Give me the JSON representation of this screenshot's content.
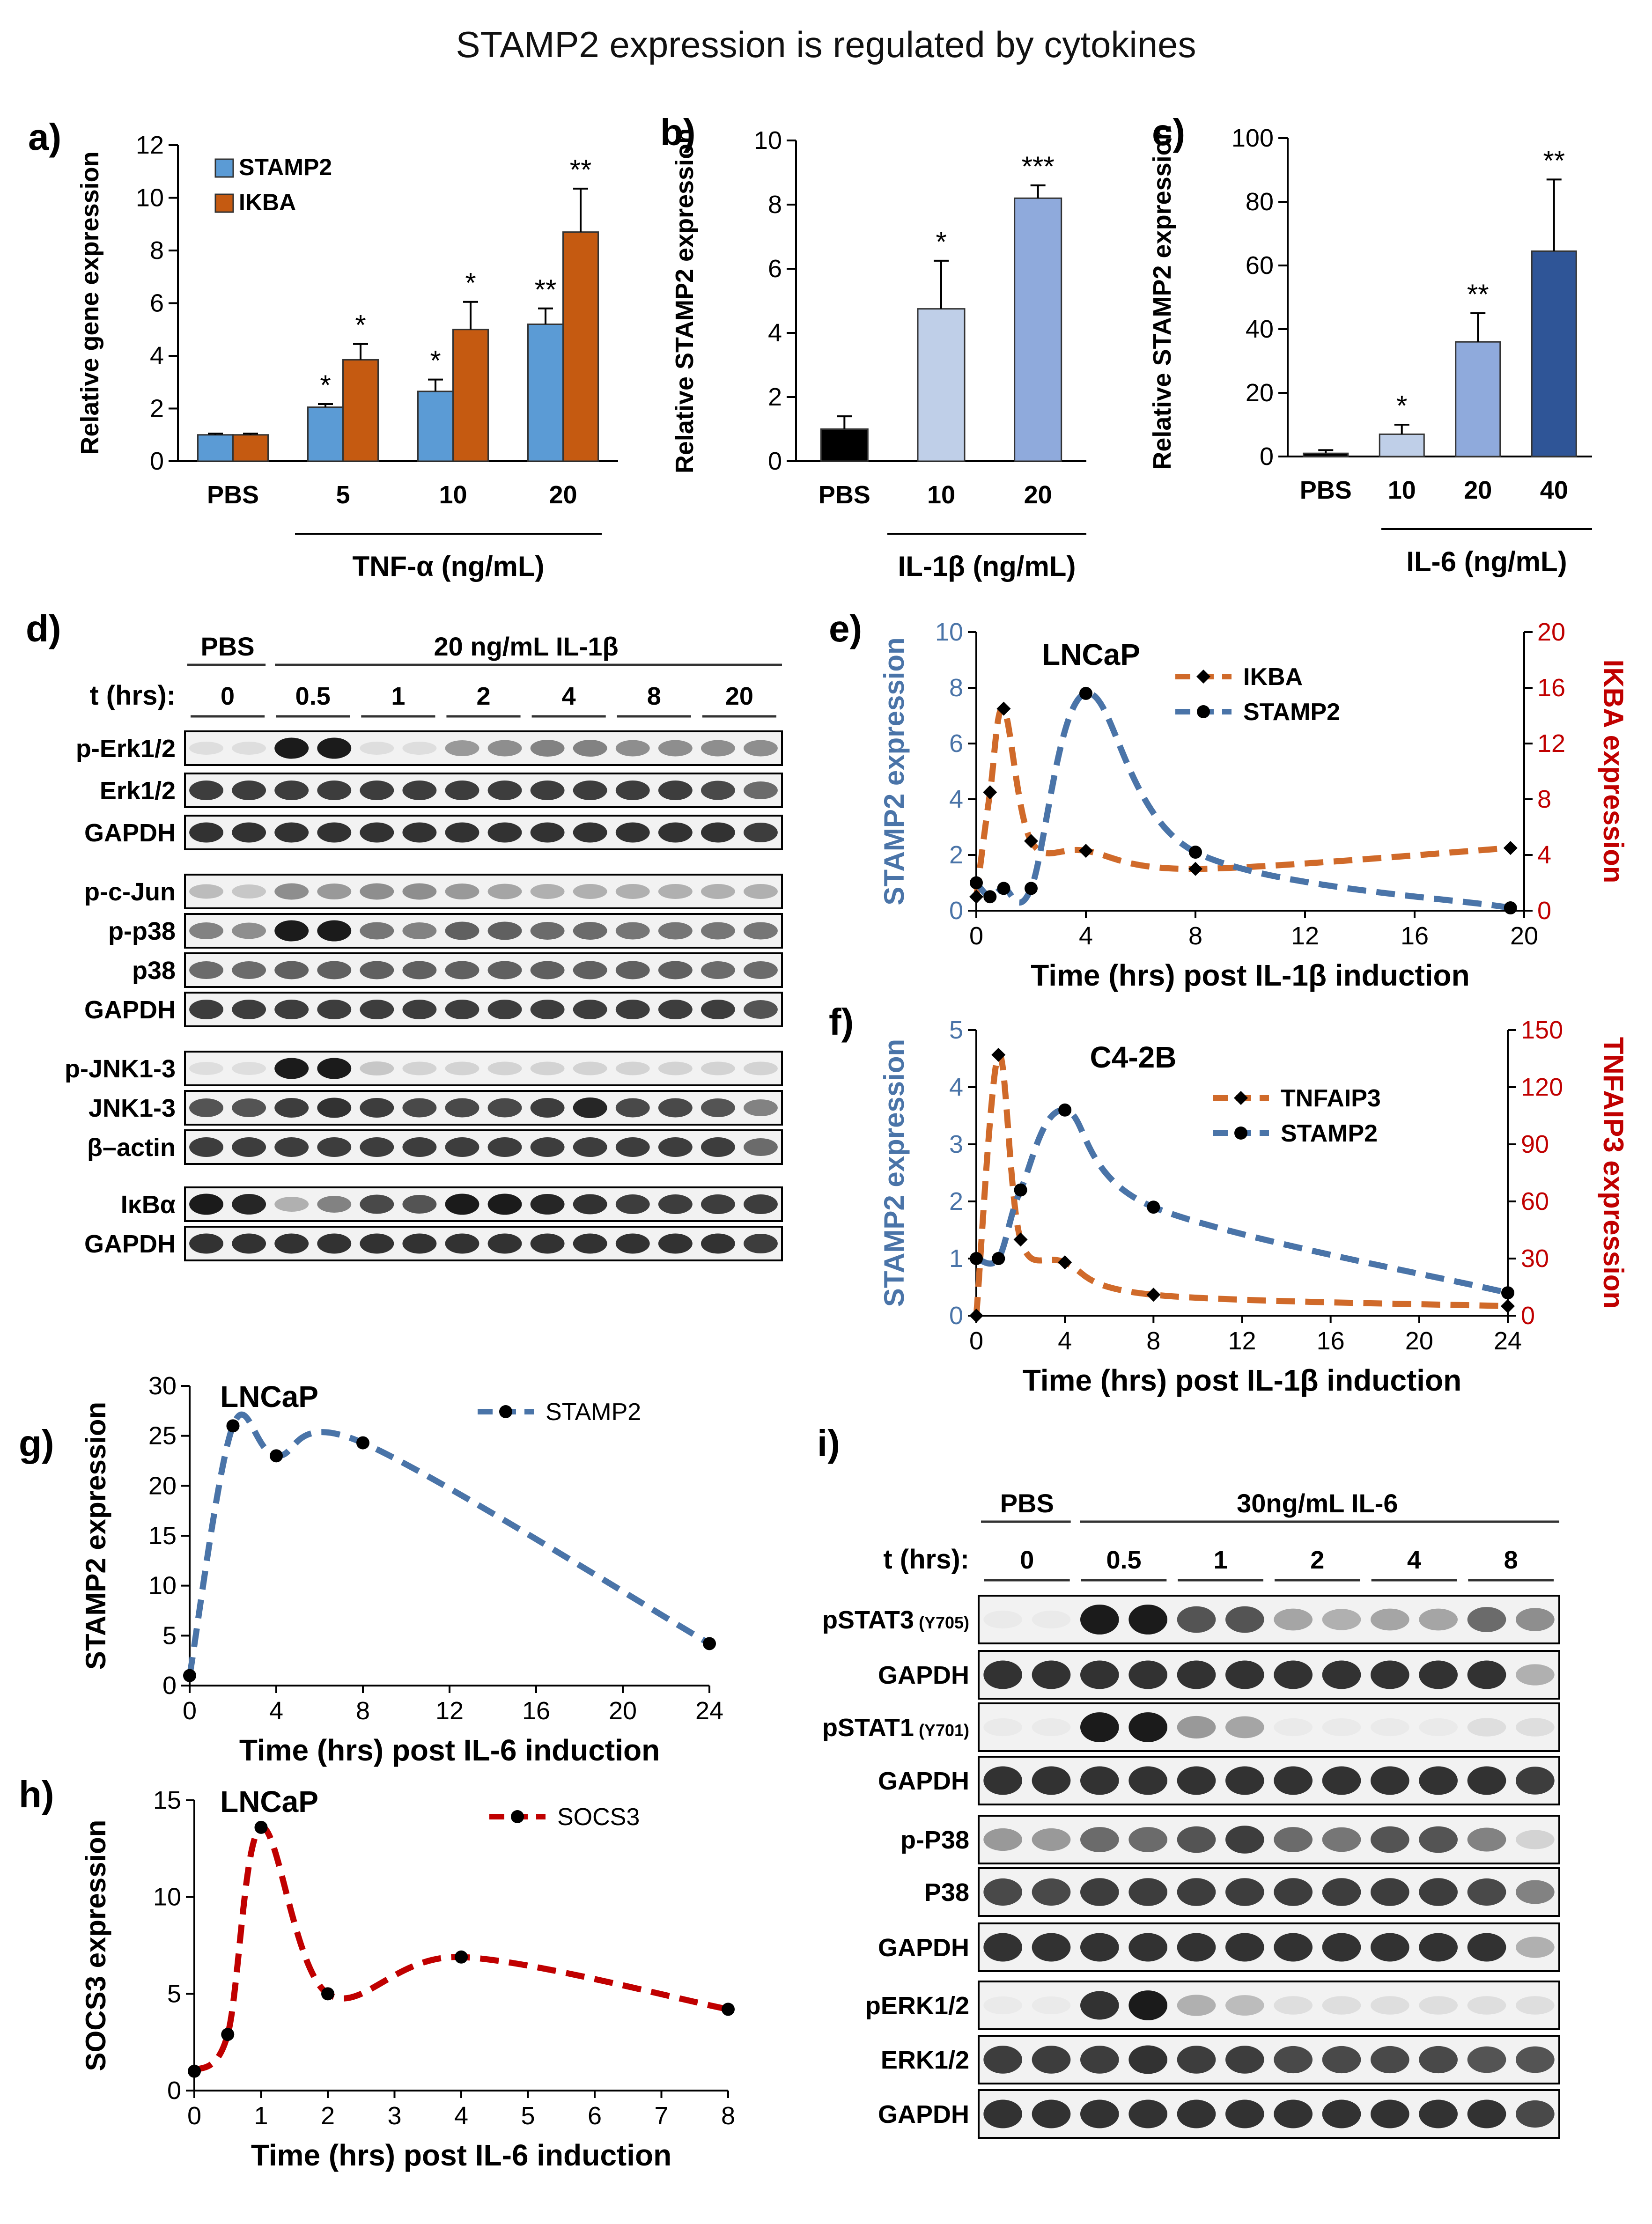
{
  "figure": {
    "title": "STAMP2 expression is regulated by cytokines"
  },
  "colors": {
    "stamp2_blue": "#5b9bd5",
    "ikba_orange": "#c55a11",
    "black": "#000000",
    "light_blue": "#bfcfe8",
    "mid_blue": "#8faadc",
    "dark_blue": "#2f5597",
    "line_blue": "#4a74a8",
    "line_orange": "#d06a2a",
    "line_red": "#c00000",
    "axis_blue": "#4a74a8",
    "axis_red": "#c00000"
  },
  "panels": {
    "a": "a)",
    "b": "b)",
    "c": "c)",
    "d": "d)",
    "e": "e)",
    "f": "f)",
    "g": "g)",
    "h": "h)",
    "i": "i)"
  },
  "chart_data": [
    {
      "id": "a",
      "type": "bar",
      "categories": [
        "PBS",
        "5",
        "10",
        "20"
      ],
      "series": [
        {
          "name": "STAMP2",
          "values": [
            1.0,
            2.05,
            2.65,
            5.2
          ],
          "errors": [
            0.05,
            0.12,
            0.45,
            0.6
          ],
          "stars": [
            "",
            "*",
            "*",
            "**"
          ]
        },
        {
          "name": "IKBA",
          "values": [
            1.0,
            3.85,
            5.0,
            8.7
          ],
          "errors": [
            0.05,
            0.6,
            1.05,
            1.65
          ],
          "stars": [
            "",
            "*",
            "*",
            "**"
          ]
        }
      ],
      "ylabel": "Relative gene expression",
      "ylim": [
        0,
        12
      ],
      "yticks": [
        "0",
        "2",
        "4",
        "6",
        "8",
        "10",
        "12"
      ],
      "group_label": "TNF-α (ng/mL)"
    },
    {
      "id": "b",
      "type": "bar",
      "categories": [
        "PBS",
        "10",
        "20"
      ],
      "values": [
        1.0,
        4.75,
        8.2
      ],
      "errors": [
        0.4,
        1.5,
        0.4
      ],
      "stars": [
        "",
        "*",
        "***"
      ],
      "ylabel": "Relative STAMP2 expression",
      "ylim": [
        0,
        10
      ],
      "yticks": [
        "0",
        "2",
        "4",
        "6",
        "8",
        "10"
      ],
      "group_label": "IL-1β (ng/mL)"
    },
    {
      "id": "c",
      "type": "bar",
      "categories": [
        "PBS",
        "10",
        "20",
        "40"
      ],
      "values": [
        1.0,
        7.0,
        36.0,
        64.5
      ],
      "errors": [
        1.0,
        3.0,
        9.0,
        22.5
      ],
      "stars": [
        "",
        "*",
        "**",
        "**"
      ],
      "ylabel": "Relative STAMP2 expression",
      "ylim": [
        0,
        100
      ],
      "yticks": [
        "0",
        "20",
        "40",
        "60",
        "80",
        "100"
      ],
      "group_label": "IL-6 (ng/mL)"
    },
    {
      "id": "e",
      "type": "line",
      "annotation": "LNCaP",
      "xlabel": "Time (hrs) post IL-1β induction",
      "xlim": [
        0,
        20
      ],
      "xticks": [
        "0",
        "4",
        "8",
        "12",
        "16",
        "20"
      ],
      "ylabel": "STAMP2 expression",
      "ylim": [
        0,
        10
      ],
      "yticks": [
        "0",
        "2",
        "4",
        "6",
        "8",
        "10"
      ],
      "y2label": "IKBA expression",
      "y2lim": [
        0,
        20
      ],
      "y2ticks": [
        "0",
        "4",
        "8",
        "12",
        "16",
        "20"
      ],
      "series": [
        {
          "name": "IKBA",
          "axis": "right",
          "x": [
            0,
            0.5,
            1,
            2,
            4,
            8,
            19.5
          ],
          "y": [
            1.0,
            8.5,
            14.5,
            5.0,
            4.3,
            3.0,
            4.5
          ]
        },
        {
          "name": "STAMP2",
          "axis": "left",
          "x": [
            0,
            0.5,
            1,
            2,
            4,
            8,
            19.5
          ],
          "y": [
            1.0,
            0.5,
            0.8,
            0.8,
            7.8,
            2.1,
            0.1
          ]
        }
      ]
    },
    {
      "id": "f",
      "type": "line",
      "annotation": "C4-2B",
      "xlabel": "Time (hrs) post IL-1β induction",
      "xlim": [
        0,
        24
      ],
      "xticks": [
        "0",
        "4",
        "8",
        "12",
        "16",
        "20",
        "24"
      ],
      "ylabel": "STAMP2 expression",
      "ylim": [
        0,
        5
      ],
      "yticks": [
        "0",
        "1",
        "2",
        "3",
        "4",
        "5"
      ],
      "y2label": "TNFAIP3 expression",
      "y2lim": [
        0,
        150
      ],
      "y2ticks": [
        "0",
        "30",
        "60",
        "90",
        "120",
        "150"
      ],
      "series": [
        {
          "name": "TNFAIP3",
          "axis": "right",
          "x": [
            0,
            1,
            2,
            4,
            8,
            24
          ],
          "y": [
            0,
            137,
            40,
            28,
            11,
            5
          ]
        },
        {
          "name": "STAMP2",
          "axis": "left",
          "x": [
            0,
            1,
            2,
            4,
            8,
            24
          ],
          "y": [
            1.0,
            1.0,
            2.2,
            3.6,
            1.9,
            0.4
          ]
        }
      ]
    },
    {
      "id": "g",
      "type": "line",
      "annotation": "LNCaP",
      "xlabel": "Time (hrs) post IL-6 induction",
      "xlim": [
        0,
        24
      ],
      "xticks": [
        "0",
        "4",
        "8",
        "12",
        "16",
        "20",
        "24"
      ],
      "ylabel": "STAMP2 expression",
      "ylim": [
        0,
        30
      ],
      "yticks": [
        "0",
        "5",
        "10",
        "15",
        "20",
        "25",
        "30"
      ],
      "series": [
        {
          "name": "STAMP2",
          "x": [
            0,
            2,
            4,
            8,
            24
          ],
          "y": [
            1.0,
            26.0,
            23.0,
            24.3,
            4.2
          ]
        }
      ]
    },
    {
      "id": "h",
      "type": "line",
      "annotation": "LNCaP",
      "xlabel": "Time (hrs) post IL-6 induction",
      "xlim": [
        0,
        8
      ],
      "xticks": [
        "0",
        "1",
        "2",
        "3",
        "4",
        "5",
        "6",
        "7",
        "8"
      ],
      "ylabel": "SOCS3 expression",
      "ylim": [
        0,
        15
      ],
      "yticks": [
        "0",
        "5",
        "10",
        "15"
      ],
      "series": [
        {
          "name": "SOCS3",
          "x": [
            0,
            0.5,
            1,
            2,
            4,
            8
          ],
          "y": [
            1.0,
            2.9,
            13.6,
            5.0,
            6.9,
            4.2
          ]
        }
      ]
    }
  ],
  "blot_d": {
    "pbs_label": "PBS",
    "treat_label": "20 ng/mL IL-1β",
    "t_label": "t (hrs):",
    "times": [
      "0",
      "0.5",
      "1",
      "2",
      "4",
      "8",
      "20"
    ],
    "rows": [
      {
        "label": "p-Erk1/2",
        "intensities": [
          0.1,
          0.1,
          0.95,
          0.95,
          0.1,
          0.1,
          0.4,
          0.45,
          0.5,
          0.5,
          0.45,
          0.45,
          0.45,
          0.45
        ]
      },
      {
        "label": "Erk1/2",
        "intensities": [
          0.8,
          0.8,
          0.8,
          0.8,
          0.8,
          0.8,
          0.8,
          0.8,
          0.8,
          0.8,
          0.8,
          0.8,
          0.75,
          0.6
        ]
      },
      {
        "label": "GAPDH",
        "intensities": [
          0.85,
          0.85,
          0.85,
          0.85,
          0.85,
          0.85,
          0.85,
          0.85,
          0.85,
          0.85,
          0.85,
          0.85,
          0.85,
          0.8
        ]
      },
      {
        "label": "p-c-Jun",
        "intensities": [
          0.25,
          0.2,
          0.45,
          0.4,
          0.45,
          0.45,
          0.4,
          0.35,
          0.3,
          0.3,
          0.3,
          0.3,
          0.3,
          0.3
        ]
      },
      {
        "label": "p-p38",
        "intensities": [
          0.5,
          0.45,
          0.95,
          0.95,
          0.55,
          0.5,
          0.65,
          0.65,
          0.6,
          0.6,
          0.55,
          0.55,
          0.55,
          0.55
        ]
      },
      {
        "label": "p38",
        "intensities": [
          0.6,
          0.6,
          0.65,
          0.65,
          0.65,
          0.65,
          0.65,
          0.65,
          0.65,
          0.65,
          0.65,
          0.65,
          0.6,
          0.6
        ]
      },
      {
        "label": "GAPDH",
        "intensities": [
          0.8,
          0.8,
          0.8,
          0.8,
          0.8,
          0.8,
          0.8,
          0.8,
          0.8,
          0.8,
          0.8,
          0.8,
          0.8,
          0.7
        ]
      },
      {
        "label": "p-JNK1-3",
        "intensities": [
          0.1,
          0.1,
          0.95,
          0.95,
          0.2,
          0.15,
          0.15,
          0.15,
          0.15,
          0.15,
          0.15,
          0.15,
          0.15,
          0.15
        ]
      },
      {
        "label": "JNK1-3",
        "intensities": [
          0.7,
          0.7,
          0.8,
          0.85,
          0.8,
          0.75,
          0.75,
          0.75,
          0.8,
          0.9,
          0.75,
          0.75,
          0.7,
          0.5
        ]
      },
      {
        "label": "β–actin",
        "intensities": [
          0.8,
          0.8,
          0.8,
          0.8,
          0.8,
          0.8,
          0.8,
          0.8,
          0.8,
          0.8,
          0.8,
          0.8,
          0.8,
          0.6
        ]
      },
      {
        "label": "IκBα",
        "intensities": [
          0.95,
          0.9,
          0.3,
          0.5,
          0.75,
          0.7,
          0.95,
          0.95,
          0.9,
          0.85,
          0.8,
          0.8,
          0.8,
          0.8
        ]
      },
      {
        "label": "GAPDH",
        "intensities": [
          0.85,
          0.85,
          0.85,
          0.85,
          0.85,
          0.85,
          0.85,
          0.85,
          0.85,
          0.85,
          0.85,
          0.85,
          0.85,
          0.8
        ]
      }
    ]
  },
  "blot_i": {
    "pbs_label": "PBS",
    "treat_label": "30ng/mL IL-6",
    "t_label": "t (hrs):",
    "times": [
      "0",
      "0.5",
      "1",
      "2",
      "4",
      "8"
    ],
    "rows": [
      {
        "label": "pSTAT3",
        "sub": "(Y705)",
        "intensities": [
          0.05,
          0.05,
          0.95,
          0.95,
          0.7,
          0.7,
          0.35,
          0.3,
          0.35,
          0.35,
          0.6,
          0.45
        ]
      },
      {
        "label": "GAPDH",
        "intensities": [
          0.85,
          0.85,
          0.85,
          0.85,
          0.85,
          0.85,
          0.85,
          0.85,
          0.85,
          0.85,
          0.85,
          0.3
        ]
      },
      {
        "label": "pSTAT1",
        "sub": "(Y701)",
        "intensities": [
          0.05,
          0.05,
          0.95,
          0.95,
          0.4,
          0.35,
          0.05,
          0.05,
          0.05,
          0.05,
          0.1,
          0.1
        ]
      },
      {
        "label": "GAPDH",
        "intensities": [
          0.85,
          0.85,
          0.85,
          0.85,
          0.85,
          0.85,
          0.85,
          0.85,
          0.85,
          0.85,
          0.85,
          0.8
        ]
      },
      {
        "label": "p-P38",
        "intensities": [
          0.4,
          0.4,
          0.6,
          0.6,
          0.7,
          0.8,
          0.6,
          0.55,
          0.7,
          0.7,
          0.5,
          0.15
        ]
      },
      {
        "label": "P38",
        "intensities": [
          0.75,
          0.75,
          0.8,
          0.8,
          0.8,
          0.8,
          0.8,
          0.8,
          0.8,
          0.8,
          0.75,
          0.5
        ]
      },
      {
        "label": "GAPDH",
        "intensities": [
          0.85,
          0.85,
          0.85,
          0.85,
          0.85,
          0.85,
          0.85,
          0.85,
          0.85,
          0.85,
          0.85,
          0.3
        ]
      },
      {
        "label": "pERK1/2",
        "intensities": [
          0.05,
          0.05,
          0.85,
          0.95,
          0.3,
          0.25,
          0.1,
          0.1,
          0.1,
          0.1,
          0.1,
          0.1
        ]
      },
      {
        "label": "ERK1/2",
        "intensities": [
          0.8,
          0.8,
          0.8,
          0.85,
          0.8,
          0.8,
          0.75,
          0.75,
          0.75,
          0.75,
          0.7,
          0.7
        ]
      },
      {
        "label": "GAPDH",
        "intensities": [
          0.85,
          0.85,
          0.85,
          0.85,
          0.85,
          0.85,
          0.85,
          0.85,
          0.85,
          0.85,
          0.85,
          0.75
        ]
      }
    ]
  }
}
